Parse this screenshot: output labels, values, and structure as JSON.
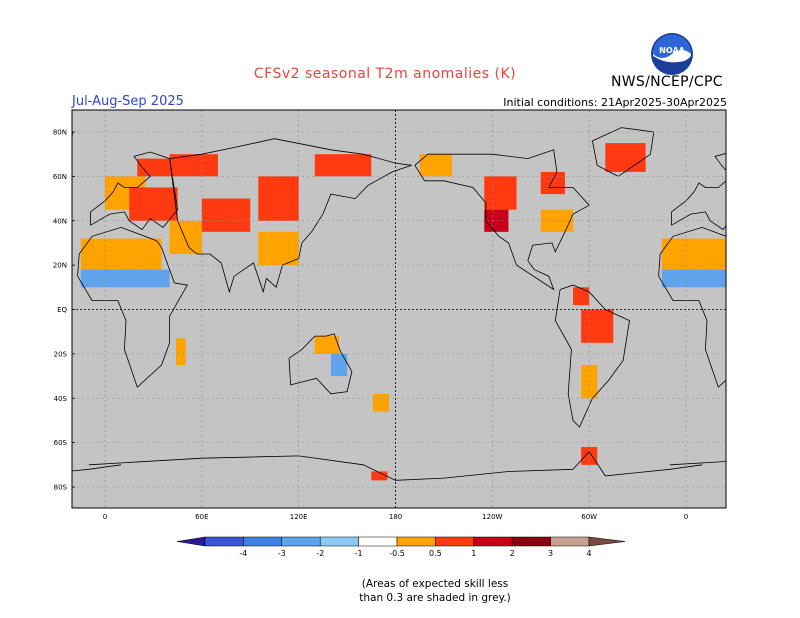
{
  "header": {
    "title": "CFSv2 seasonal T2m anomalies (K)",
    "season": "Jul-Aug-Sep 2025",
    "agency": "NWS/NCEP/CPC",
    "initial_conditions": "Initial conditions: 21Apr2025-30Apr2025",
    "logo_text": "NOAA"
  },
  "map": {
    "projection": "cylindrical-equidistant",
    "center_longitude": 180,
    "lat_range": [
      -90,
      90
    ],
    "lat_ticks": [
      {
        "lat": 80,
        "label": "80N"
      },
      {
        "lat": 60,
        "label": "60N"
      },
      {
        "lat": 40,
        "label": "40N"
      },
      {
        "lat": 20,
        "label": "20N"
      },
      {
        "lat": 0,
        "label": "EQ"
      },
      {
        "lat": -20,
        "label": "20S"
      },
      {
        "lat": -40,
        "label": "40S"
      },
      {
        "lat": -60,
        "label": "60S"
      },
      {
        "lat": -80,
        "label": "80S"
      }
    ],
    "lon_ticks": [
      {
        "lon": 0,
        "label": "0"
      },
      {
        "lon": 60,
        "label": "60E"
      },
      {
        "lon": 120,
        "label": "120E"
      },
      {
        "lon": 180,
        "label": "180"
      },
      {
        "lon": 240,
        "label": "120W"
      },
      {
        "lon": 300,
        "label": "60W"
      },
      {
        "lon": 360,
        "label": "0"
      }
    ],
    "grey_color": "#c4c4c4"
  },
  "colorbar": {
    "labels": [
      "-4",
      "-3",
      "-2",
      "-1",
      "-0.5",
      "0.5",
      "1",
      "2",
      "3",
      "4"
    ],
    "colors": [
      "#2a1a9a",
      "#3a55d8",
      "#3d7fe4",
      "#5fa3ec",
      "#8dc8f5",
      "#ffffff",
      "#ffa300",
      "#ff3a10",
      "#c8001a",
      "#8c0010",
      "#c8a090",
      "#7a4a40"
    ]
  },
  "anomaly_regions": [
    {
      "name": "europe-west",
      "lon_range": [
        0,
        25
      ],
      "lat_range": [
        45,
        60
      ],
      "value": 0.7
    },
    {
      "name": "central-europe",
      "lon_range": [
        15,
        45
      ],
      "lat_range": [
        40,
        55
      ],
      "value": 1.4
    },
    {
      "name": "scandinavia",
      "lon_range": [
        20,
        40
      ],
      "lat_range": [
        60,
        68
      ],
      "value": 1.4
    },
    {
      "name": "russia-north",
      "lon_range": [
        40,
        70
      ],
      "lat_range": [
        60,
        70
      ],
      "value": 1.4
    },
    {
      "name": "sahara",
      "lon_range": [
        -15,
        35
      ],
      "lat_range": [
        18,
        32
      ],
      "value": 0.7
    },
    {
      "name": "sahel",
      "lon_range": [
        -15,
        40
      ],
      "lat_range": [
        10,
        18
      ],
      "value": -0.7
    },
    {
      "name": "middle-east",
      "lon_range": [
        40,
        60
      ],
      "lat_range": [
        25,
        40
      ],
      "value": 0.7
    },
    {
      "name": "central-asia",
      "lon_range": [
        60,
        90
      ],
      "lat_range": [
        35,
        50
      ],
      "value": 1.4
    },
    {
      "name": "siberia-east",
      "lon_range": [
        95,
        120
      ],
      "lat_range": [
        40,
        60
      ],
      "value": 1.4
    },
    {
      "name": "china",
      "lon_range": [
        95,
        120
      ],
      "lat_range": [
        20,
        35
      ],
      "value": 0.7
    },
    {
      "name": "east-siberia-north",
      "lon_range": [
        130,
        165
      ],
      "lat_range": [
        60,
        70
      ],
      "value": 1.4
    },
    {
      "name": "alaska",
      "lon_range": [
        195,
        215
      ],
      "lat_range": [
        60,
        70
      ],
      "value": 0.7
    },
    {
      "name": "canada-west",
      "lon_range": [
        235,
        255
      ],
      "lat_range": [
        45,
        60
      ],
      "value": 1.4
    },
    {
      "name": "us-west",
      "lon_range": [
        235,
        250
      ],
      "lat_range": [
        35,
        45
      ],
      "value": 2.5
    },
    {
      "name": "us-east",
      "lon_range": [
        270,
        290
      ],
      "lat_range": [
        35,
        45
      ],
      "value": 0.7
    },
    {
      "name": "hudson",
      "lon_range": [
        270,
        285
      ],
      "lat_range": [
        52,
        62
      ],
      "value": 1.4
    },
    {
      "name": "greenland",
      "lon_range": [
        310,
        335
      ],
      "lat_range": [
        62,
        75
      ],
      "value": 1.4
    },
    {
      "name": "amazon",
      "lon_range": [
        295,
        315
      ],
      "lat_range": [
        -15,
        0
      ],
      "value": 1.4
    },
    {
      "name": "venezuela",
      "lon_range": [
        290,
        300
      ],
      "lat_range": [
        2,
        10
      ],
      "value": 1.4
    },
    {
      "name": "argentina",
      "lon_range": [
        295,
        305
      ],
      "lat_range": [
        -40,
        -25
      ],
      "value": 0.7
    },
    {
      "name": "australia-north",
      "lon_range": [
        130,
        145
      ],
      "lat_range": [
        -20,
        -12
      ],
      "value": 0.7
    },
    {
      "name": "australia-east",
      "lon_range": [
        140,
        150
      ],
      "lat_range": [
        -30,
        -20
      ],
      "value": -0.7
    },
    {
      "name": "new-zealand",
      "lon_range": [
        166,
        176
      ],
      "lat_range": [
        -46,
        -38
      ],
      "value": 0.7
    },
    {
      "name": "madagascar",
      "lon_range": [
        44,
        50
      ],
      "lat_range": [
        -25,
        -13
      ],
      "value": 0.7
    },
    {
      "name": "antarctic-peninsula",
      "lon_range": [
        295,
        305
      ],
      "lat_range": [
        -70,
        -62
      ],
      "value": 1.4
    },
    {
      "name": "ross-sea",
      "lon_range": [
        165,
        175
      ],
      "lat_range": [
        -77,
        -73
      ],
      "value": 1.4
    }
  ],
  "footnote": {
    "line1": "(Areas of expected skill less",
    "line2": "than 0.3 are shaded in grey.)"
  }
}
